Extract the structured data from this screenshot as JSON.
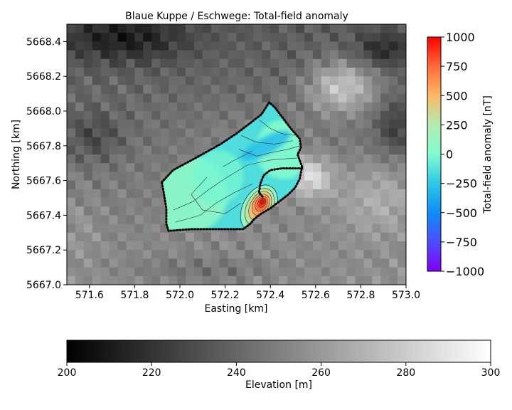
{
  "chart_data": {
    "type": "heatmap",
    "title": "Blaue Kuppe / Eschwege: Total-field anomaly",
    "xlabel": "Easting [km]",
    "ylabel": "Northing [km]",
    "xlim": [
      571.5,
      573.0
    ],
    "ylim": [
      5667.0,
      5668.5
    ],
    "x_ticks": [
      571.6,
      571.8,
      572.0,
      572.2,
      572.4,
      572.6,
      572.8,
      573.0
    ],
    "x_tick_labels": [
      "571.6",
      "571.8",
      "572.0",
      "572.2",
      "572.4",
      "572.6",
      "572.8",
      "573.0"
    ],
    "y_ticks": [
      5667.0,
      5667.2,
      5667.4,
      5667.6,
      5667.8,
      5668.0,
      5668.2,
      5668.4
    ],
    "y_tick_labels": [
      "5667.0",
      "5667.2",
      "5667.4",
      "5667.6",
      "5667.8",
      "5668.0",
      "5668.2",
      "5668.4"
    ],
    "background": {
      "quantity": "Elevation [m]",
      "colormap": "greys",
      "range": [
        200,
        300
      ]
    },
    "anomaly": {
      "quantity": "Total-field anomaly [nT]",
      "colormap": "rainbow",
      "range": [
        -1000,
        1000
      ],
      "typical_value": -150,
      "survey_outline": [
        [
          571.92,
          5667.59
        ],
        [
          571.97,
          5667.66
        ],
        [
          572.07,
          5667.73
        ],
        [
          572.18,
          5667.81
        ],
        [
          572.25,
          5667.87
        ],
        [
          572.31,
          5667.93
        ],
        [
          572.36,
          5667.98
        ],
        [
          572.395,
          5668.05
        ],
        [
          572.42,
          5668.02
        ],
        [
          572.455,
          5667.96
        ],
        [
          572.49,
          5667.9
        ],
        [
          572.53,
          5667.84
        ],
        [
          572.535,
          5667.79
        ],
        [
          572.52,
          5667.75
        ],
        [
          572.54,
          5667.68
        ],
        [
          572.53,
          5667.61
        ],
        [
          572.51,
          5667.56
        ],
        [
          572.48,
          5667.52
        ],
        [
          572.44,
          5667.48
        ],
        [
          572.4,
          5667.44
        ],
        [
          572.36,
          5667.41
        ],
        [
          572.33,
          5667.38
        ],
        [
          572.31,
          5667.35
        ],
        [
          572.28,
          5667.32
        ],
        [
          572.15,
          5667.32
        ],
        [
          572.05,
          5667.32
        ],
        [
          571.95,
          5667.31
        ],
        [
          571.94,
          5667.35
        ],
        [
          571.94,
          5667.44
        ],
        [
          571.93,
          5667.52
        ]
      ],
      "inner_boundary": [
        [
          572.54,
          5667.67
        ],
        [
          572.5,
          5667.67
        ],
        [
          572.45,
          5667.67
        ],
        [
          572.4,
          5667.66
        ],
        [
          572.37,
          5667.63
        ],
        [
          572.355,
          5667.58
        ],
        [
          572.35,
          5667.53
        ],
        [
          572.37,
          5667.5
        ]
      ],
      "positive_lobe": {
        "x": 572.35,
        "y": 5667.44,
        "peak": 1000
      },
      "negative_trough": {
        "x": 572.38,
        "y": 5667.8,
        "value": -300
      }
    },
    "colorbars": [
      {
        "label": "Total-field anomaly [nT]",
        "orientation": "vertical",
        "position": "right",
        "range": [
          -1000,
          1000
        ],
        "ticks": [
          1000,
          750,
          500,
          250,
          0,
          -250,
          -500,
          -750,
          -1000
        ],
        "tick_labels": [
          "1000",
          "750",
          "500",
          "250",
          "0",
          "−250",
          "−500",
          "−750",
          "−1000"
        ]
      },
      {
        "label": "Elevation [m]",
        "orientation": "horizontal",
        "position": "bottom",
        "range": [
          200,
          300
        ],
        "ticks": [
          200,
          220,
          240,
          260,
          280,
          300
        ],
        "tick_labels": [
          "200",
          "220",
          "240",
          "260",
          "280",
          "300"
        ]
      }
    ],
    "grid": false
  }
}
